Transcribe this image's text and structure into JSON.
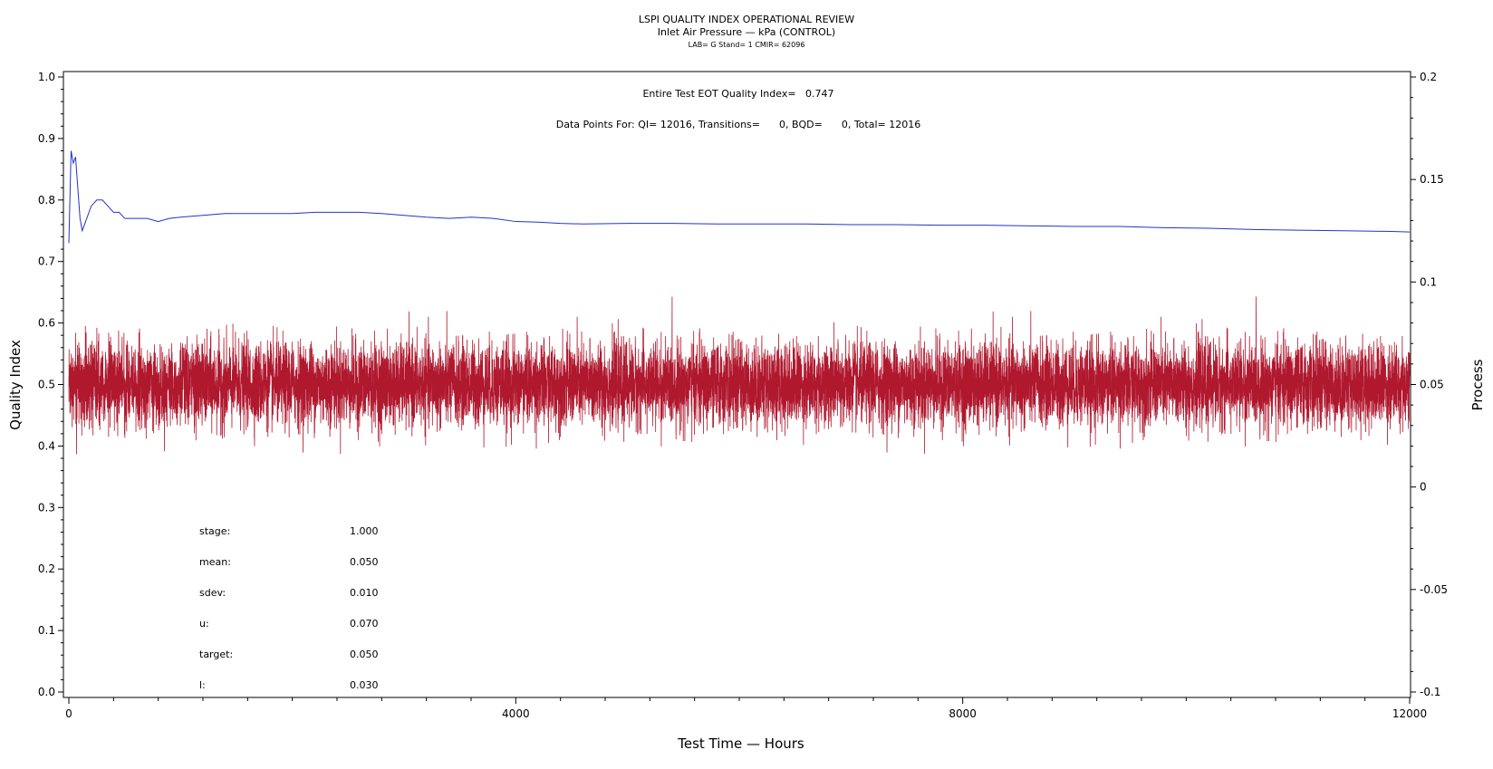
{
  "chart_data": {
    "type": "line",
    "title": "LSPI QUALITY INDEX OPERATIONAL REVIEW",
    "subtitle": "Inlet Air Pressure — kPa (CONTROL)",
    "meta_line": "LAB= G Stand= 1 CMIR= 62096",
    "annotations": {
      "quality_index_line": "Entire Test EOT Quality Index=   0.747",
      "data_points_line": "Data Points For: QI= 12016, Transitions=      0, BQD=      0, Total= 12016"
    },
    "xlabel": "Test Time — Hours",
    "ylabel": "Quality Index",
    "y2label": "Process",
    "xlim": [
      0,
      12000
    ],
    "ylim": [
      0,
      1.0
    ],
    "y2lim": [
      -0.1,
      0.2
    ],
    "x_ticks": [
      "0",
      "4000",
      "8000",
      "12000"
    ],
    "x_tick_values": [
      0,
      4000,
      8000,
      12000
    ],
    "y_ticks": [
      "0.0",
      "0.1",
      "0.2",
      "0.3",
      "0.4",
      "0.5",
      "0.6",
      "0.7",
      "0.8",
      "0.9",
      "1.0"
    ],
    "y_tick_values": [
      0,
      0.1,
      0.2,
      0.3,
      0.4,
      0.5,
      0.6,
      0.7,
      0.8,
      0.9,
      1.0
    ],
    "y2_ticks": [
      "-0.1",
      "-0.05",
      "0",
      "0.05",
      "0.1",
      "0.15",
      "0.2"
    ],
    "y2_tick_values": [
      -0.1,
      -0.05,
      0,
      0.05,
      0.1,
      0.15,
      0.2
    ],
    "grid": false,
    "series": [
      {
        "axis": "left",
        "color": "#2233cc",
        "x": [
          0,
          20,
          40,
          60,
          80,
          100,
          120,
          140,
          160,
          180,
          200,
          250,
          300,
          350,
          400,
          450,
          500,
          600,
          700,
          800,
          900,
          1000,
          1200,
          1400,
          1600,
          1800,
          2000,
          2200,
          2400,
          2600,
          2800,
          3000,
          3200,
          3400,
          3600,
          3800,
          4000,
          4200,
          4400,
          4600,
          5000,
          5400,
          5800,
          6200,
          6600,
          7000,
          7400,
          7800,
          8200,
          8600,
          9000,
          9400,
          9800,
          10200,
          10600,
          11000,
          11400,
          11800,
          12000
        ],
        "y": [
          0.73,
          0.88,
          0.86,
          0.87,
          0.82,
          0.77,
          0.75,
          0.76,
          0.77,
          0.78,
          0.79,
          0.8,
          0.8,
          0.79,
          0.78,
          0.78,
          0.77,
          0.77,
          0.77,
          0.765,
          0.77,
          0.772,
          0.775,
          0.778,
          0.778,
          0.778,
          0.778,
          0.78,
          0.78,
          0.78,
          0.778,
          0.775,
          0.772,
          0.77,
          0.772,
          0.77,
          0.765,
          0.764,
          0.762,
          0.761,
          0.762,
          0.762,
          0.761,
          0.761,
          0.761,
          0.76,
          0.76,
          0.759,
          0.759,
          0.758,
          0.757,
          0.757,
          0.755,
          0.754,
          0.752,
          0.751,
          0.75,
          0.749,
          0.748
        ]
      },
      {
        "axis": "right",
        "color": "#b0182e",
        "points": 12016,
        "mean": 0.05,
        "sdev": 0.01,
        "min": 0.016,
        "max": 0.094,
        "x_range": [
          0,
          12000
        ]
      }
    ],
    "stats": [
      {
        "label": "stage:",
        "value": "1.000"
      },
      {
        "label": "mean:",
        "value": "0.050"
      },
      {
        "label": "sdev:",
        "value": "0.010"
      },
      {
        "label": "u:",
        "value": "0.070"
      },
      {
        "label": "target:",
        "value": "0.050"
      },
      {
        "label": "l:",
        "value": "0.030"
      }
    ]
  }
}
